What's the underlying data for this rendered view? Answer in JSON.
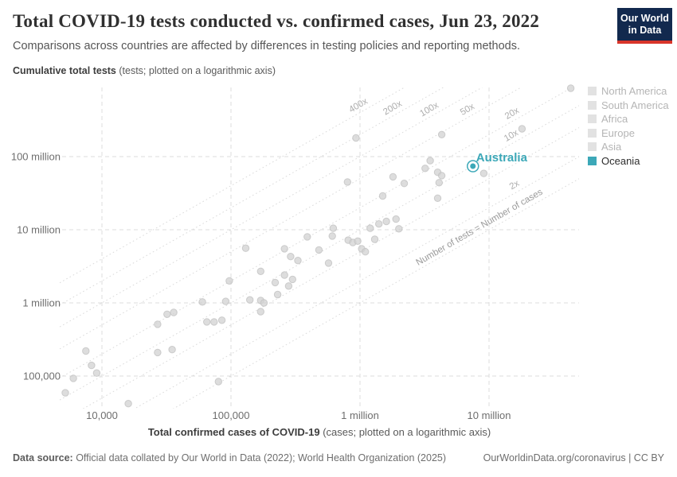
{
  "header": {
    "title": "Total COVID-19 tests conducted vs. confirmed cases, Jun 23, 2022",
    "subtitle": "Comparisons across countries are affected by differences in testing policies and reporting methods.",
    "logo_line1": "Our World",
    "logo_line2": "in Data"
  },
  "axes": {
    "y_title_bold": "Cumulative total tests",
    "y_title_rest": " (tests; plotted on a logarithmic axis)",
    "x_title_bold": "Total confirmed cases of COVID-19",
    "x_title_rest": " (cases; plotted on a logarithmic axis)",
    "x_ticks": [
      {
        "value": 10000,
        "label": "10,000"
      },
      {
        "value": 100000,
        "label": "100,000"
      },
      {
        "value": 1000000,
        "label": "1 million"
      },
      {
        "value": 10000000,
        "label": "10 million"
      }
    ],
    "y_ticks": [
      {
        "value": 100000,
        "label": "100,000"
      },
      {
        "value": 1000000,
        "label": "1 million"
      },
      {
        "value": 10000000,
        "label": "10 million"
      },
      {
        "value": 100000000,
        "label": "100 million"
      }
    ]
  },
  "legend": {
    "items": [
      {
        "label": "North America",
        "active": false
      },
      {
        "label": "South America",
        "active": false
      },
      {
        "label": "Africa",
        "active": false
      },
      {
        "label": "Europe",
        "active": false
      },
      {
        "label": "Asia",
        "active": false
      },
      {
        "label": "Oceania",
        "active": true
      }
    ]
  },
  "colors": {
    "accent": "#3ca8b8",
    "inactive_swatch": "#e2e2e2",
    "inactive_text": "#b5b5b5",
    "active_text": "#2d2d2d",
    "point_fill": "#d2d2d2",
    "point_stroke": "#c2c2c2",
    "gridline": "#dcdcdc",
    "ratio_line": "#dadada"
  },
  "chart_data": {
    "type": "scatter",
    "title": "Total COVID-19 tests conducted vs. confirmed cases, Jun 23, 2022",
    "xlabel": "Total confirmed cases of COVID-19 (cases; plotted on a logarithmic axis)",
    "ylabel": "Cumulative total tests (tests; plotted on a logarithmic axis)",
    "log_x": true,
    "log_y": true,
    "grid": true,
    "x_range": [
      4700,
      50000000
    ],
    "y_range": [
      36000,
      880000000
    ],
    "ratio_lines": [
      {
        "ratio": 400,
        "label": "400x"
      },
      {
        "ratio": 200,
        "label": "200x"
      },
      {
        "ratio": 100,
        "label": "100x"
      },
      {
        "ratio": 50,
        "label": "50x"
      },
      {
        "ratio": 20,
        "label": "20x"
      },
      {
        "ratio": 10,
        "label": "10x"
      },
      {
        "ratio": 5,
        "label": ""
      },
      {
        "ratio": 2,
        "label": "2x"
      },
      {
        "ratio": 1,
        "label": ""
      }
    ],
    "equality_label": "Number of tests = Number of cases",
    "highlight": {
      "name": "Australia",
      "cases": 7500000,
      "tests": 74000000
    },
    "points": [
      [
        43000000,
        860000000
      ],
      [
        18000000,
        240000000
      ],
      [
        4300000,
        200000000
      ],
      [
        930000,
        180000000
      ],
      [
        3500000,
        88000000
      ],
      [
        3200000,
        69000000
      ],
      [
        9100000,
        59000000
      ],
      [
        4000000,
        61000000
      ],
      [
        4300000,
        55000000
      ],
      [
        1800000,
        53000000
      ],
      [
        4100000,
        44000000
      ],
      [
        800000,
        45000000
      ],
      [
        1500000,
        29000000
      ],
      [
        4000000,
        27000000
      ],
      [
        2200000,
        43000000
      ],
      [
        1900000,
        14000000
      ],
      [
        1600000,
        13000000
      ],
      [
        1400000,
        12000000
      ],
      [
        1200000,
        10500000
      ],
      [
        2000000,
        10300000
      ],
      [
        620000,
        10500000
      ],
      [
        610000,
        8200000
      ],
      [
        390000,
        8000000
      ],
      [
        480000,
        5300000
      ],
      [
        570000,
        3500000
      ],
      [
        810000,
        7200000
      ],
      [
        880000,
        6700000
      ],
      [
        960000,
        7000000
      ],
      [
        1030000,
        5500000
      ],
      [
        1100000,
        5000000
      ],
      [
        1300000,
        7400000
      ],
      [
        130000,
        5600000
      ],
      [
        260000,
        5500000
      ],
      [
        290000,
        4300000
      ],
      [
        330000,
        3800000
      ],
      [
        170000,
        2700000
      ],
      [
        260000,
        2400000
      ],
      [
        300000,
        2100000
      ],
      [
        97000,
        2000000
      ],
      [
        220000,
        1900000
      ],
      [
        280000,
        1700000
      ],
      [
        230000,
        1300000
      ],
      [
        60000,
        1030000
      ],
      [
        91000,
        1050000
      ],
      [
        140000,
        1100000
      ],
      [
        170000,
        1080000
      ],
      [
        180000,
        1000000
      ],
      [
        170000,
        760000
      ],
      [
        32000,
        700000
      ],
      [
        36000,
        740000
      ],
      [
        27000,
        510000
      ],
      [
        65000,
        550000
      ],
      [
        74000,
        550000
      ],
      [
        85000,
        580000
      ],
      [
        35000,
        230000
      ],
      [
        27000,
        210000
      ],
      [
        7500,
        220000
      ],
      [
        8300,
        140000
      ],
      [
        9100,
        110000
      ],
      [
        6000,
        93000
      ],
      [
        5200,
        59000
      ],
      [
        16000,
        42000
      ],
      [
        80000,
        84000
      ]
    ]
  },
  "footer": {
    "source_label": "Data source:",
    "source_text": " Official data collated by Our World in Data (2022); World Health Organization (2025)",
    "link": "OurWorldinData.org/coronavirus | CC BY"
  }
}
